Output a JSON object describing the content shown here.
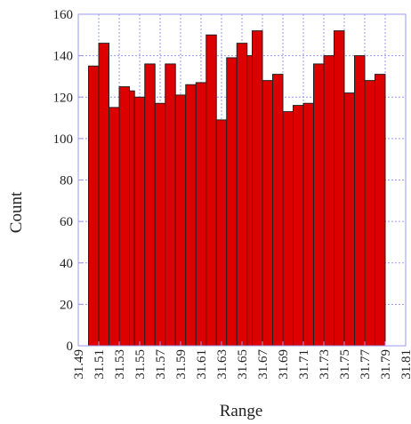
{
  "chart_data": {
    "type": "bar",
    "title": "",
    "xlabel": "Range",
    "ylabel": "Count",
    "ylim": [
      0,
      160
    ],
    "xlim": [
      31.49,
      31.81
    ],
    "yticks": [
      "0",
      "20",
      "40",
      "60",
      "80",
      "100",
      "120",
      "140",
      "160"
    ],
    "xticks": [
      "31.49",
      "31.51",
      "31.53",
      "31.55",
      "31.57",
      "31.59",
      "31.61",
      "31.63",
      "31.65",
      "31.67",
      "31.69",
      "31.71",
      "31.73",
      "31.75",
      "31.77",
      "31.79",
      "31.81"
    ],
    "grid": true,
    "legend": "none",
    "bin_width": 0.01,
    "bins": [
      {
        "start": 31.5,
        "value": 135
      },
      {
        "start": 31.51,
        "value": 146
      },
      {
        "start": 31.52,
        "value": 115
      },
      {
        "start": 31.53,
        "value": 125
      },
      {
        "start": 31.54,
        "value": 123
      },
      {
        "start": 31.545,
        "value": 120
      },
      {
        "start": 31.555,
        "value": 136
      },
      {
        "start": 31.565,
        "value": 117
      },
      {
        "start": 31.575,
        "value": 136
      },
      {
        "start": 31.585,
        "value": 121
      },
      {
        "start": 31.595,
        "value": 126
      },
      {
        "start": 31.605,
        "value": 127
      },
      {
        "start": 31.615,
        "value": 150
      },
      {
        "start": 31.625,
        "value": 109
      },
      {
        "start": 31.635,
        "value": 139
      },
      {
        "start": 31.645,
        "value": 146
      },
      {
        "start": 31.655,
        "value": 140
      },
      {
        "start": 31.66,
        "value": 152
      },
      {
        "start": 31.67,
        "value": 128
      },
      {
        "start": 31.68,
        "value": 131
      },
      {
        "start": 31.69,
        "value": 113
      },
      {
        "start": 31.7,
        "value": 116
      },
      {
        "start": 31.71,
        "value": 117
      },
      {
        "start": 31.72,
        "value": 136
      },
      {
        "start": 31.73,
        "value": 140
      },
      {
        "start": 31.74,
        "value": 152
      },
      {
        "start": 31.75,
        "value": 122
      },
      {
        "start": 31.76,
        "value": 140
      },
      {
        "start": 31.77,
        "value": 128
      },
      {
        "start": 31.78,
        "value": 131
      }
    ],
    "colors": {
      "bar_fill": "#dd0000",
      "bar_stroke": "#222222",
      "grid": "#9999ee",
      "frame": "#9999ee"
    }
  }
}
